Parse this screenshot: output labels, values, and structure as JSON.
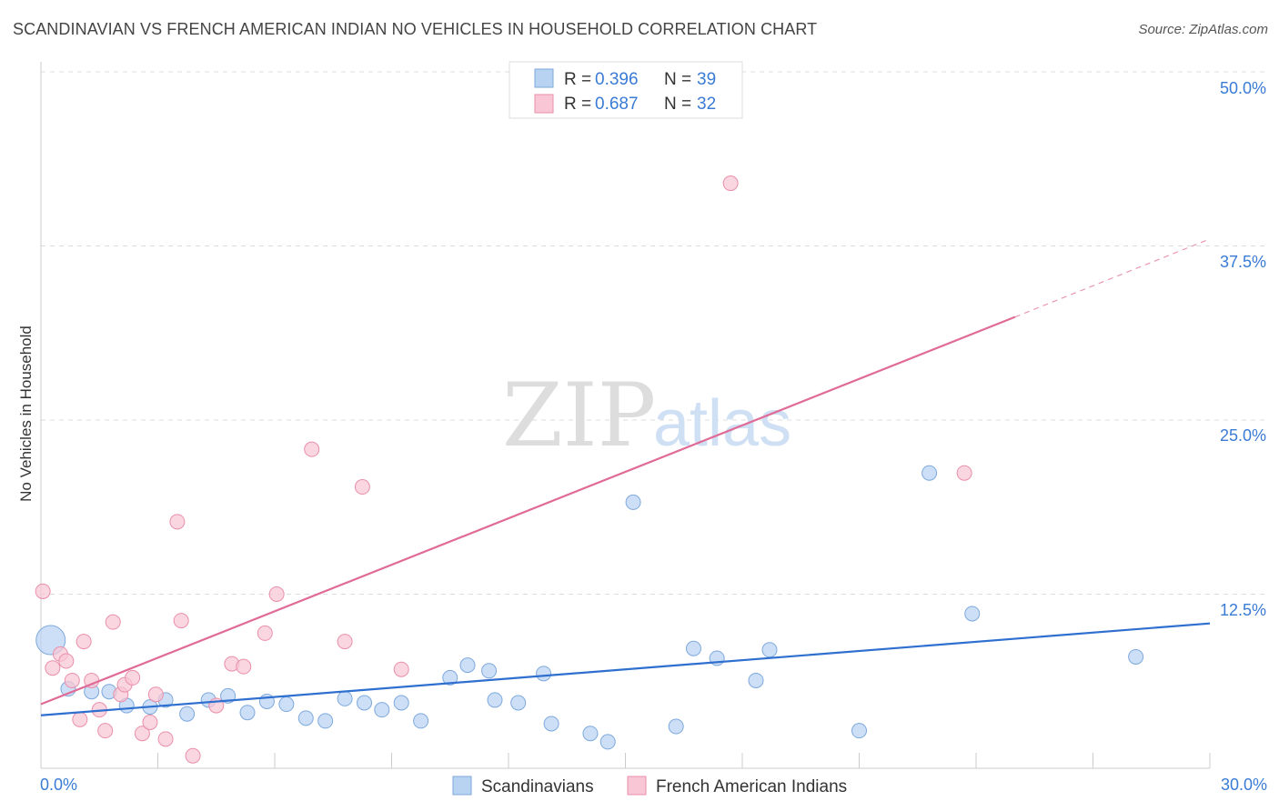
{
  "header": {
    "title": "SCANDINAVIAN VS FRENCH AMERICAN INDIAN NO VEHICLES IN HOUSEHOLD CORRELATION CHART",
    "source": "Source: ZipAtlas.com"
  },
  "watermark": {
    "zip": "ZIP",
    "atlas": "atlas"
  },
  "colors": {
    "blue_fill": "#b8d3f2",
    "blue_stroke": "#7ea9dc",
    "blue_line": "#2f6fcf",
    "pink_fill": "#f8c6d4",
    "pink_stroke": "#ea8fab",
    "pink_line": "#e06b96",
    "grid": "#dcdcdc",
    "tick_text": "#3a7bd5"
  },
  "chart_data": {
    "type": "scatter",
    "title": "SCANDINAVIAN VS FRENCH AMERICAN INDIAN NO VEHICLES IN HOUSEHOLD CORRELATION CHART",
    "xlabel": "",
    "ylabel": "No Vehicles in Household",
    "xlim": [
      0,
      30
    ],
    "ylim": [
      0,
      50
    ],
    "x_tick_labels": [
      "0.0%",
      "30.0%"
    ],
    "y_ticks": [
      12.5,
      25.0,
      37.5,
      50.0
    ],
    "y_tick_labels": [
      "12.5%",
      "25.0%",
      "37.5%",
      "50.0%"
    ],
    "grid": true,
    "legend": {
      "placement": "top-center",
      "entries": [
        {
          "r_label": "R = ",
          "r_value": "0.396",
          "n_label": "N = ",
          "n_value": "39"
        },
        {
          "r_label": "R = ",
          "r_value": "0.687",
          "n_label": "N = ",
          "n_value": "32"
        }
      ]
    },
    "bottom_legend": [
      "Scandinavians",
      "French American Indians"
    ],
    "series": [
      {
        "name": "Scandinavians",
        "color_key": "blue",
        "trend": {
          "x": [
            0,
            30
          ],
          "y": [
            3.8,
            10.4
          ]
        },
        "points": [
          {
            "x": 0.25,
            "y": 9.2,
            "big": true
          },
          {
            "x": 0.7,
            "y": 5.7
          },
          {
            "x": 1.3,
            "y": 5.5
          },
          {
            "x": 1.75,
            "y": 5.5
          },
          {
            "x": 2.2,
            "y": 4.5
          },
          {
            "x": 2.8,
            "y": 4.4
          },
          {
            "x": 3.2,
            "y": 4.9
          },
          {
            "x": 3.75,
            "y": 3.9
          },
          {
            "x": 4.3,
            "y": 4.9
          },
          {
            "x": 4.8,
            "y": 5.2
          },
          {
            "x": 5.3,
            "y": 4.0
          },
          {
            "x": 5.8,
            "y": 4.8
          },
          {
            "x": 6.3,
            "y": 4.6
          },
          {
            "x": 6.8,
            "y": 3.6
          },
          {
            "x": 7.3,
            "y": 3.4
          },
          {
            "x": 7.8,
            "y": 5.0
          },
          {
            "x": 8.3,
            "y": 4.7
          },
          {
            "x": 8.75,
            "y": 4.2
          },
          {
            "x": 9.25,
            "y": 4.7
          },
          {
            "x": 9.75,
            "y": 3.4
          },
          {
            "x": 10.5,
            "y": 6.5
          },
          {
            "x": 10.95,
            "y": 7.4
          },
          {
            "x": 11.5,
            "y": 7.0
          },
          {
            "x": 11.65,
            "y": 4.9
          },
          {
            "x": 12.25,
            "y": 4.7
          },
          {
            "x": 12.9,
            "y": 6.8
          },
          {
            "x": 13.1,
            "y": 3.2
          },
          {
            "x": 14.1,
            "y": 2.5
          },
          {
            "x": 14.55,
            "y": 1.9
          },
          {
            "x": 15.2,
            "y": 19.1
          },
          {
            "x": 16.3,
            "y": 3.0
          },
          {
            "x": 16.75,
            "y": 8.6
          },
          {
            "x": 17.35,
            "y": 7.9
          },
          {
            "x": 18.35,
            "y": 6.3
          },
          {
            "x": 18.7,
            "y": 8.5
          },
          {
            "x": 21.0,
            "y": 2.7
          },
          {
            "x": 22.8,
            "y": 21.2
          },
          {
            "x": 23.9,
            "y": 11.1
          },
          {
            "x": 28.1,
            "y": 8.0
          }
        ]
      },
      {
        "name": "French American Indians",
        "color_key": "pink",
        "trend": {
          "x": [
            0,
            25
          ],
          "y": [
            4.6,
            32.4
          ]
        },
        "trend_dashed": {
          "x": [
            25,
            30
          ],
          "y": [
            32.4,
            38.0
          ]
        },
        "points": [
          {
            "x": 0.05,
            "y": 12.7
          },
          {
            "x": 0.3,
            "y": 7.2
          },
          {
            "x": 0.5,
            "y": 8.2
          },
          {
            "x": 0.65,
            "y": 7.7
          },
          {
            "x": 0.8,
            "y": 6.3
          },
          {
            "x": 1.0,
            "y": 3.5
          },
          {
            "x": 1.1,
            "y": 9.1
          },
          {
            "x": 1.3,
            "y": 6.3
          },
          {
            "x": 1.5,
            "y": 4.2
          },
          {
            "x": 1.65,
            "y": 2.7
          },
          {
            "x": 1.85,
            "y": 10.5
          },
          {
            "x": 2.05,
            "y": 5.3
          },
          {
            "x": 2.15,
            "y": 6.0
          },
          {
            "x": 2.35,
            "y": 6.5
          },
          {
            "x": 2.6,
            "y": 2.5
          },
          {
            "x": 2.8,
            "y": 3.3
          },
          {
            "x": 2.95,
            "y": 5.3
          },
          {
            "x": 3.2,
            "y": 2.1
          },
          {
            "x": 3.5,
            "y": 17.7
          },
          {
            "x": 3.6,
            "y": 10.6
          },
          {
            "x": 3.9,
            "y": 0.9
          },
          {
            "x": 4.5,
            "y": 4.5
          },
          {
            "x": 4.9,
            "y": 7.5
          },
          {
            "x": 5.2,
            "y": 7.3
          },
          {
            "x": 5.75,
            "y": 9.7
          },
          {
            "x": 6.05,
            "y": 12.5
          },
          {
            "x": 6.95,
            "y": 22.9
          },
          {
            "x": 7.8,
            "y": 9.1
          },
          {
            "x": 8.25,
            "y": 20.2
          },
          {
            "x": 9.25,
            "y": 7.1
          },
          {
            "x": 17.7,
            "y": 42.0
          },
          {
            "x": 23.7,
            "y": 21.2
          }
        ]
      }
    ]
  }
}
